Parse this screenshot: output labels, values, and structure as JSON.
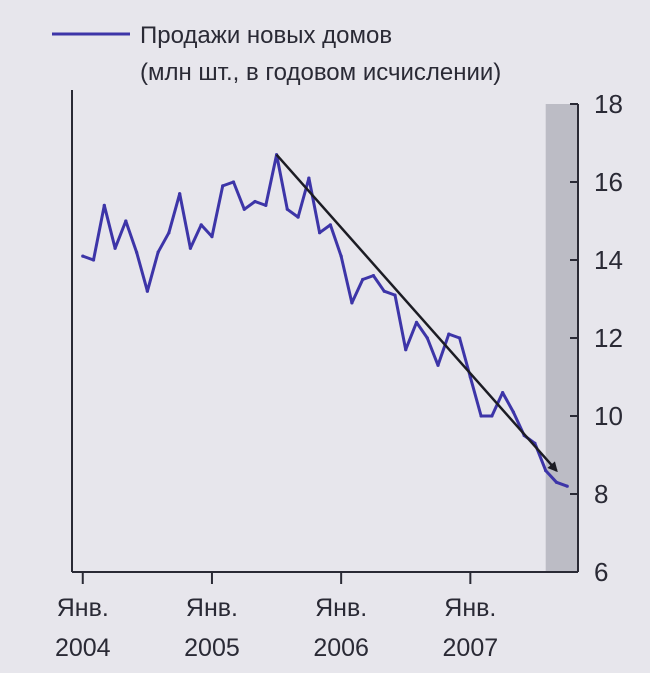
{
  "chart_data": {
    "type": "line",
    "title": "",
    "legend": {
      "line1": "Продажи новых домов",
      "line2": "(млн шт., в годовом исчислении)",
      "placement": "top-left"
    },
    "y_axis": {
      "side": "right",
      "range": [
        6,
        18
      ],
      "ticks": [
        "18",
        "16",
        "14",
        "12",
        "10",
        "8",
        "6"
      ]
    },
    "x_axis": {
      "range": [
        "2003-12",
        "2007-11"
      ],
      "ticks": [
        {
          "month": "2004-01",
          "line1": "Янв.",
          "line2": "2004"
        },
        {
          "month": "2005-01",
          "line1": "Янв.",
          "line2": "2005"
        },
        {
          "month": "2006-01",
          "line1": "Янв.",
          "line2": "2006"
        },
        {
          "month": "2007-01",
          "line1": "Янв.",
          "line2": "2007"
        }
      ]
    },
    "series": [
      {
        "color": "#3d35a8",
        "points": [
          [
            "2004-01",
            14.1
          ],
          [
            "2004-02",
            14.0
          ],
          [
            "2004-03",
            15.4
          ],
          [
            "2004-04",
            14.3
          ],
          [
            "2004-05",
            15.0
          ],
          [
            "2004-06",
            14.2
          ],
          [
            "2004-07",
            13.2
          ],
          [
            "2004-08",
            14.2
          ],
          [
            "2004-09",
            14.7
          ],
          [
            "2004-10",
            15.7
          ],
          [
            "2004-11",
            14.3
          ],
          [
            "2004-12",
            14.9
          ],
          [
            "2005-01",
            14.6
          ],
          [
            "2005-02",
            15.9
          ],
          [
            "2005-03",
            16.0
          ],
          [
            "2005-04",
            15.3
          ],
          [
            "2005-05",
            15.5
          ],
          [
            "2005-06",
            15.4
          ],
          [
            "2005-07",
            16.7
          ],
          [
            "2005-08",
            15.3
          ],
          [
            "2005-09",
            15.1
          ],
          [
            "2005-10",
            16.1
          ],
          [
            "2005-11",
            14.7
          ],
          [
            "2005-12",
            14.9
          ],
          [
            "2006-01",
            14.1
          ],
          [
            "2006-02",
            12.9
          ],
          [
            "2006-03",
            13.5
          ],
          [
            "2006-04",
            13.6
          ],
          [
            "2006-05",
            13.2
          ],
          [
            "2006-06",
            13.1
          ],
          [
            "2006-07",
            11.7
          ],
          [
            "2006-08",
            12.4
          ],
          [
            "2006-09",
            12.0
          ],
          [
            "2006-10",
            11.3
          ],
          [
            "2006-11",
            12.1
          ],
          [
            "2006-12",
            12.0
          ],
          [
            "2007-01",
            11.0
          ],
          [
            "2007-02",
            10.0
          ],
          [
            "2007-03",
            10.0
          ],
          [
            "2007-04",
            10.6
          ],
          [
            "2007-05",
            10.1
          ],
          [
            "2007-06",
            9.5
          ],
          [
            "2007-07",
            9.3
          ],
          [
            "2007-08",
            8.6
          ],
          [
            "2007-09",
            8.3
          ],
          [
            "2007-10",
            8.2
          ]
        ]
      }
    ],
    "annotations": [
      {
        "type": "trend-arrow",
        "from": [
          "2005-07",
          16.7
        ],
        "to": [
          "2007-09",
          8.6
        ],
        "color": "#1c1c24"
      },
      {
        "type": "shaded-period",
        "from": "2007-08",
        "to": "2007-11",
        "color": "#aeaeb8"
      }
    ],
    "grid": false
  }
}
